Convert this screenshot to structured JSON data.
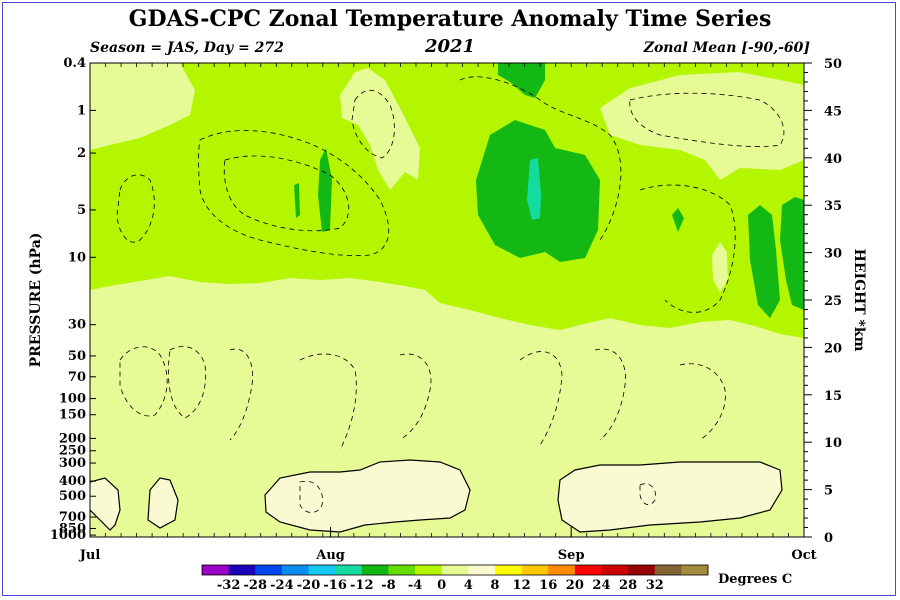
{
  "title": "GDAS-CPC Zonal Temperature Anomaly Time Series",
  "subtitle_left": "Season = JAS, Day = 272",
  "subtitle_center": "2021",
  "subtitle_right": "Zonal Mean [-90,-60]",
  "chart_data": {
    "type": "heatmap",
    "title": "GDAS-CPC Zonal Temperature Anomaly Time Series",
    "xlabel": "",
    "ylabel": "PRESSURE (hPa)",
    "ylabel_right": "HEIGHT *km",
    "x_ticks": [
      {
        "label": "Jul",
        "day": 0
      },
      {
        "label": "Aug",
        "day": 31
      },
      {
        "label": "Sep",
        "day": 62
      },
      {
        "label": "Oct",
        "day": 92
      }
    ],
    "pressure_ticks": [
      {
        "label": "0.4",
        "h": 50
      },
      {
        "label": "1",
        "h": 45
      },
      {
        "label": "2",
        "h": 40.5
      },
      {
        "label": "5",
        "h": 34.5
      },
      {
        "label": "10",
        "h": 29.5
      },
      {
        "label": "30",
        "h": 22.4
      },
      {
        "label": "50",
        "h": 19.1
      },
      {
        "label": "70",
        "h": 16.9
      },
      {
        "label": "100",
        "h": 14.6
      },
      {
        "label": "150",
        "h": 12.9
      },
      {
        "label": "200",
        "h": 10.4
      },
      {
        "label": "250",
        "h": 9.1
      },
      {
        "label": "300",
        "h": 7.8
      },
      {
        "label": "400",
        "h": 5.9
      },
      {
        "label": "500",
        "h": 4.3
      },
      {
        "label": "700",
        "h": 2.1
      },
      {
        "label": "850",
        "h": 0.9
      },
      {
        "label": "1000",
        "h": 0.2
      }
    ],
    "height_ticks": [
      0,
      5,
      10,
      15,
      20,
      25,
      30,
      35,
      40,
      45,
      50
    ],
    "ylim_km": [
      0,
      50
    ],
    "xlim_days": [
      0,
      92
    ],
    "colorbar": {
      "label": "Degrees C",
      "tick_labels": [
        "-32",
        "-28",
        "-24",
        "-20",
        "-16",
        "-12",
        "-8",
        "-4",
        "0",
        "4",
        "8",
        "12",
        "16",
        "20",
        "24",
        "28",
        "32"
      ],
      "colors": [
        "#9b00c8",
        "#1a00b8",
        "#0046f0",
        "#0a8cf0",
        "#14c8f0",
        "#14dca0",
        "#14b814",
        "#64dc00",
        "#b4f500",
        "#e6fa96",
        "#fafad2",
        "#ffff00",
        "#ffc800",
        "#ff8c00",
        "#ff0000",
        "#cd0000",
        "#960000",
        "#826432",
        "#a08c3c"
      ]
    },
    "regions": [
      {
        "fill": "#fafad2",
        "desc_level": "0 to 4",
        "area": "troposphere blobs 300-850 hPa"
      },
      {
        "fill": "#e6fa96",
        "desc_level": "-4 to 0",
        "area": "lower stratosphere 30-300 hPa"
      },
      {
        "fill": "#b4f500",
        "desc_level": "-8 to -4",
        "area": "upper stratosphere 0.4-20 hPa"
      },
      {
        "fill": "#64dc00",
        "desc_level": "-12 to -8",
        "area": "cores near 2-10 hPa"
      },
      {
        "fill": "#14dca0",
        "desc_level": "-16 to -12",
        "area": "core near 3 hPa early Sep"
      }
    ]
  }
}
